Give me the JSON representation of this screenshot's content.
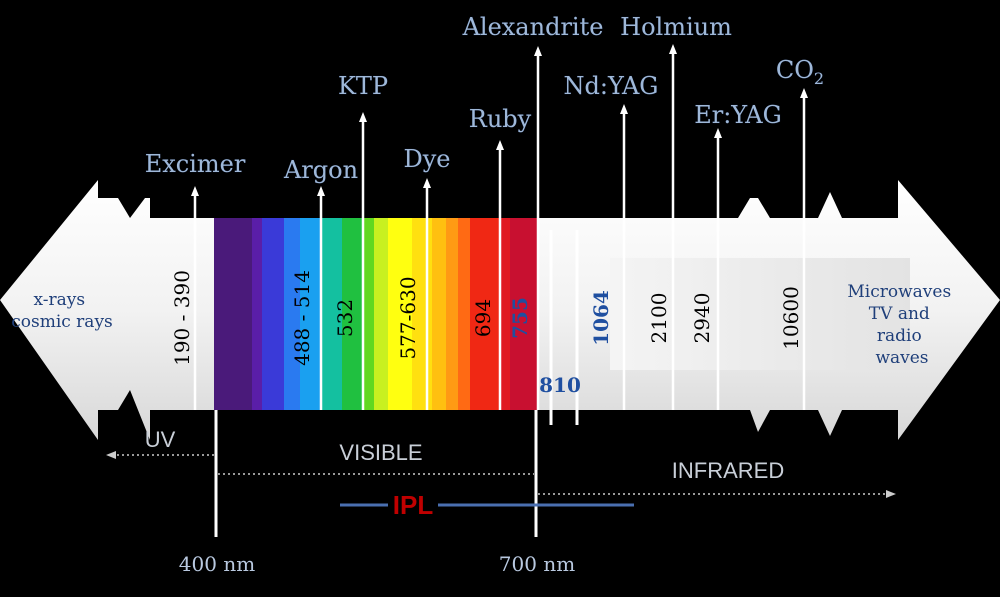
{
  "lasers": [
    {
      "name": "Excimer",
      "wavelength": "190 - 390",
      "wl_color": "#000000"
    },
    {
      "name": "Argon",
      "wavelength": "488 - 514",
      "wl_color": "#000000"
    },
    {
      "name": "KTP",
      "wavelength": "532",
      "wl_color": "#000000"
    },
    {
      "name": "Dye",
      "wavelength": "577-630",
      "wl_color": "#000000"
    },
    {
      "name": "Ruby",
      "wavelength": "694",
      "wl_color": "#000000"
    },
    {
      "name": "Alexandrite",
      "wavelength": "755",
      "wl_color": "#1f4fa0"
    },
    {
      "name": "Nd:YAG",
      "wavelength": "1064",
      "wl_color": "#1f4fa0"
    },
    {
      "name": "Holmium",
      "wavelength": "2100",
      "wl_color": "#000000"
    },
    {
      "name": "Er:YAG",
      "wavelength": "2940",
      "wl_color": "#000000"
    },
    {
      "name": "CO",
      "name_sub": "2",
      "wavelength": "10600",
      "wl_color": "#000000"
    }
  ],
  "extra_wavelength": {
    "value": "810",
    "color": "#1f4fa0"
  },
  "left_end": [
    "x-rays",
    "cosmic rays"
  ],
  "right_end": [
    "Microwaves",
    "TV and",
    "radio",
    "waves"
  ],
  "regions": {
    "uv": "UV",
    "visible": "VISIBLE",
    "infrared": "INFRARED"
  },
  "ipl": {
    "label": "IPL",
    "color": "#c00000",
    "line_color": "#4a6fb0"
  },
  "boundaries": [
    "400 nm",
    "700 nm"
  ],
  "colors": {
    "background": "#000000",
    "label_blue": "#9fb8d8",
    "wavelength_blue": "#1f4fa0"
  }
}
